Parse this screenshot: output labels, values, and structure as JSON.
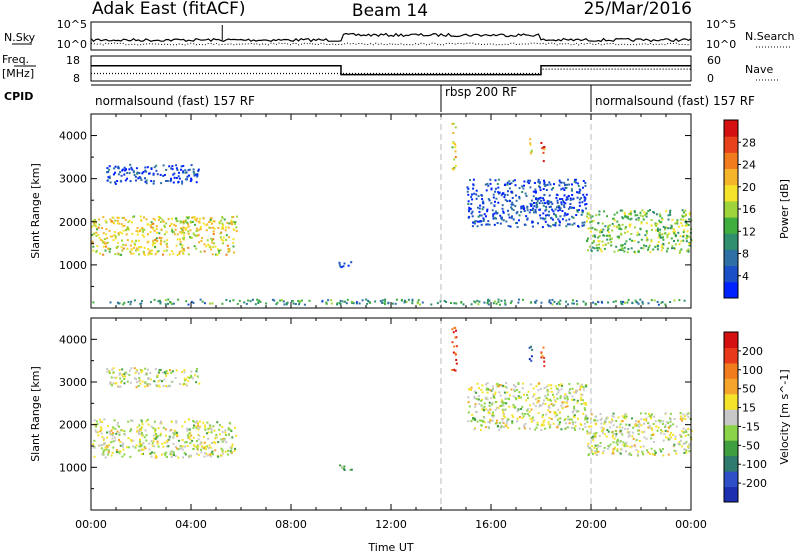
{
  "header": {
    "radar": "Adak East (fitACF)",
    "beam": "Beam 14",
    "date": "25/Mar/2016"
  },
  "sky_panel": {
    "left_label": "N.Sky",
    "right_label": "N.Search",
    "left_ticks": [
      "10^5",
      "10^0"
    ],
    "right_ticks": [
      "10^5",
      "10^0"
    ]
  },
  "freq_panel": {
    "left_label_1": "Freq.",
    "left_label_2": "[MHz]",
    "right_label": "Nave",
    "left_ticks": [
      "18",
      "8"
    ],
    "right_ticks": [
      "60",
      "0"
    ],
    "freq_steps": [
      {
        "t0": 0,
        "t1": 10,
        "v": 14
      },
      {
        "t0": 10,
        "t1": 18,
        "v": 10
      },
      {
        "t0": 18,
        "t1": 24,
        "v": 14
      }
    ],
    "nave_steps": [
      {
        "t0": 0,
        "t1": 18,
        "v": 15
      },
      {
        "t0": 18,
        "t1": 24,
        "v": 27
      }
    ]
  },
  "cpid_panel": {
    "label": "CPID",
    "segments": [
      {
        "t0": 0,
        "t1": 14,
        "text": "normalsound (fast) 157 RF"
      },
      {
        "t0": 14,
        "t1": 20,
        "text": "rbsp 200 RF"
      },
      {
        "t0": 20,
        "t1": 24,
        "text": "normalsound (fast) 157 RF"
      }
    ]
  },
  "chart_data": [
    {
      "type": "heatmap",
      "title": "Power",
      "xlabel": "Time UT",
      "ylabel": "Slant Range [km]",
      "xlim": [
        0,
        24
      ],
      "ylim": [
        0,
        4500
      ],
      "xticks": [
        0,
        4,
        8,
        12,
        16,
        20,
        24
      ],
      "xtick_labels": [
        "00:00",
        "04:00",
        "08:00",
        "12:00",
        "16:00",
        "20:00",
        "00:00"
      ],
      "yticks": [
        1000,
        2000,
        3000,
        4000
      ],
      "colorbar": {
        "label": "Power [dB]",
        "labels": [
          "28",
          "24",
          "20",
          "16",
          "12",
          "8",
          "4"
        ],
        "colors": [
          "#0022ff",
          "#1a4fc8",
          "#2e6fa6",
          "#2f8f6f",
          "#3fae3f",
          "#9fd43a",
          "#f5e32b",
          "#f5b52b",
          "#f07c1e",
          "#e8421a",
          "#d41010"
        ]
      },
      "regions": [
        {
          "t0": 0.0,
          "t1": 5.8,
          "r0": 1250,
          "r1": 2150,
          "level": 0.6
        },
        {
          "t0": 0.6,
          "t1": 4.3,
          "r0": 2900,
          "r1": 3350,
          "level": 0.1
        },
        {
          "t0": 9.7,
          "t1": 10.4,
          "r0": 960,
          "r1": 1090,
          "level": 0.1
        },
        {
          "t0": 14.4,
          "t1": 14.6,
          "r0": 3200,
          "r1": 4300,
          "level": 0.6
        },
        {
          "t0": 17.5,
          "t1": 17.65,
          "r0": 3500,
          "r1": 4000,
          "level": 0.6
        },
        {
          "t0": 17.95,
          "t1": 18.1,
          "r0": 3300,
          "r1": 3950,
          "level": 0.9
        },
        {
          "t0": 19.8,
          "t1": 24.0,
          "r0": 1300,
          "r1": 2300,
          "level": 0.45
        },
        {
          "t0": 15.0,
          "t1": 19.8,
          "r0": 1900,
          "r1": 3000,
          "level": 0.1
        },
        {
          "t0": 0.0,
          "t1": 24.0,
          "r0": 100,
          "r1": 220,
          "level": 0.3
        }
      ]
    },
    {
      "type": "heatmap",
      "title": "Velocity",
      "xlabel": "Time UT",
      "ylabel": "Slant Range [km]",
      "xlim": [
        0,
        24
      ],
      "ylim": [
        0,
        4500
      ],
      "xticks": [
        0,
        4,
        8,
        12,
        16,
        20,
        24
      ],
      "xtick_labels": [
        "00:00",
        "04:00",
        "08:00",
        "12:00",
        "16:00",
        "20:00",
        "00:00"
      ],
      "yticks": [
        1000,
        2000,
        3000,
        4000
      ],
      "colorbar": {
        "label": "Velocity [m s^-1]",
        "labels": [
          "200",
          "100",
          "50",
          "15",
          "-15",
          "-50",
          "-100",
          "-200"
        ],
        "colors": [
          "#1b2fb0",
          "#2f4fc8",
          "#2e7a6e",
          "#3f9e3f",
          "#8bd44a",
          "#c8c8c8",
          "#f5e32b",
          "#f5a52b",
          "#f07c1e",
          "#e83a1a",
          "#d41010"
        ]
      },
      "regions": [
        {
          "t0": 0.0,
          "t1": 5.8,
          "r0": 1250,
          "r1": 2150,
          "level": 0.5
        },
        {
          "t0": 0.6,
          "t1": 4.3,
          "r0": 2900,
          "r1": 3350,
          "level": 0.5
        },
        {
          "t0": 9.7,
          "t1": 10.4,
          "r0": 960,
          "r1": 1090,
          "level": 0.35
        },
        {
          "t0": 14.4,
          "t1": 14.6,
          "r0": 3200,
          "r1": 4300,
          "level": 0.95
        },
        {
          "t0": 17.5,
          "t1": 17.65,
          "r0": 3500,
          "r1": 4000,
          "level": 0.05
        },
        {
          "t0": 17.95,
          "t1": 18.1,
          "r0": 3300,
          "r1": 3950,
          "level": 0.9
        },
        {
          "t0": 19.8,
          "t1": 24.0,
          "r0": 1300,
          "r1": 2300,
          "level": 0.5
        },
        {
          "t0": 15.0,
          "t1": 19.8,
          "r0": 1900,
          "r1": 3000,
          "level": 0.5
        }
      ]
    }
  ]
}
